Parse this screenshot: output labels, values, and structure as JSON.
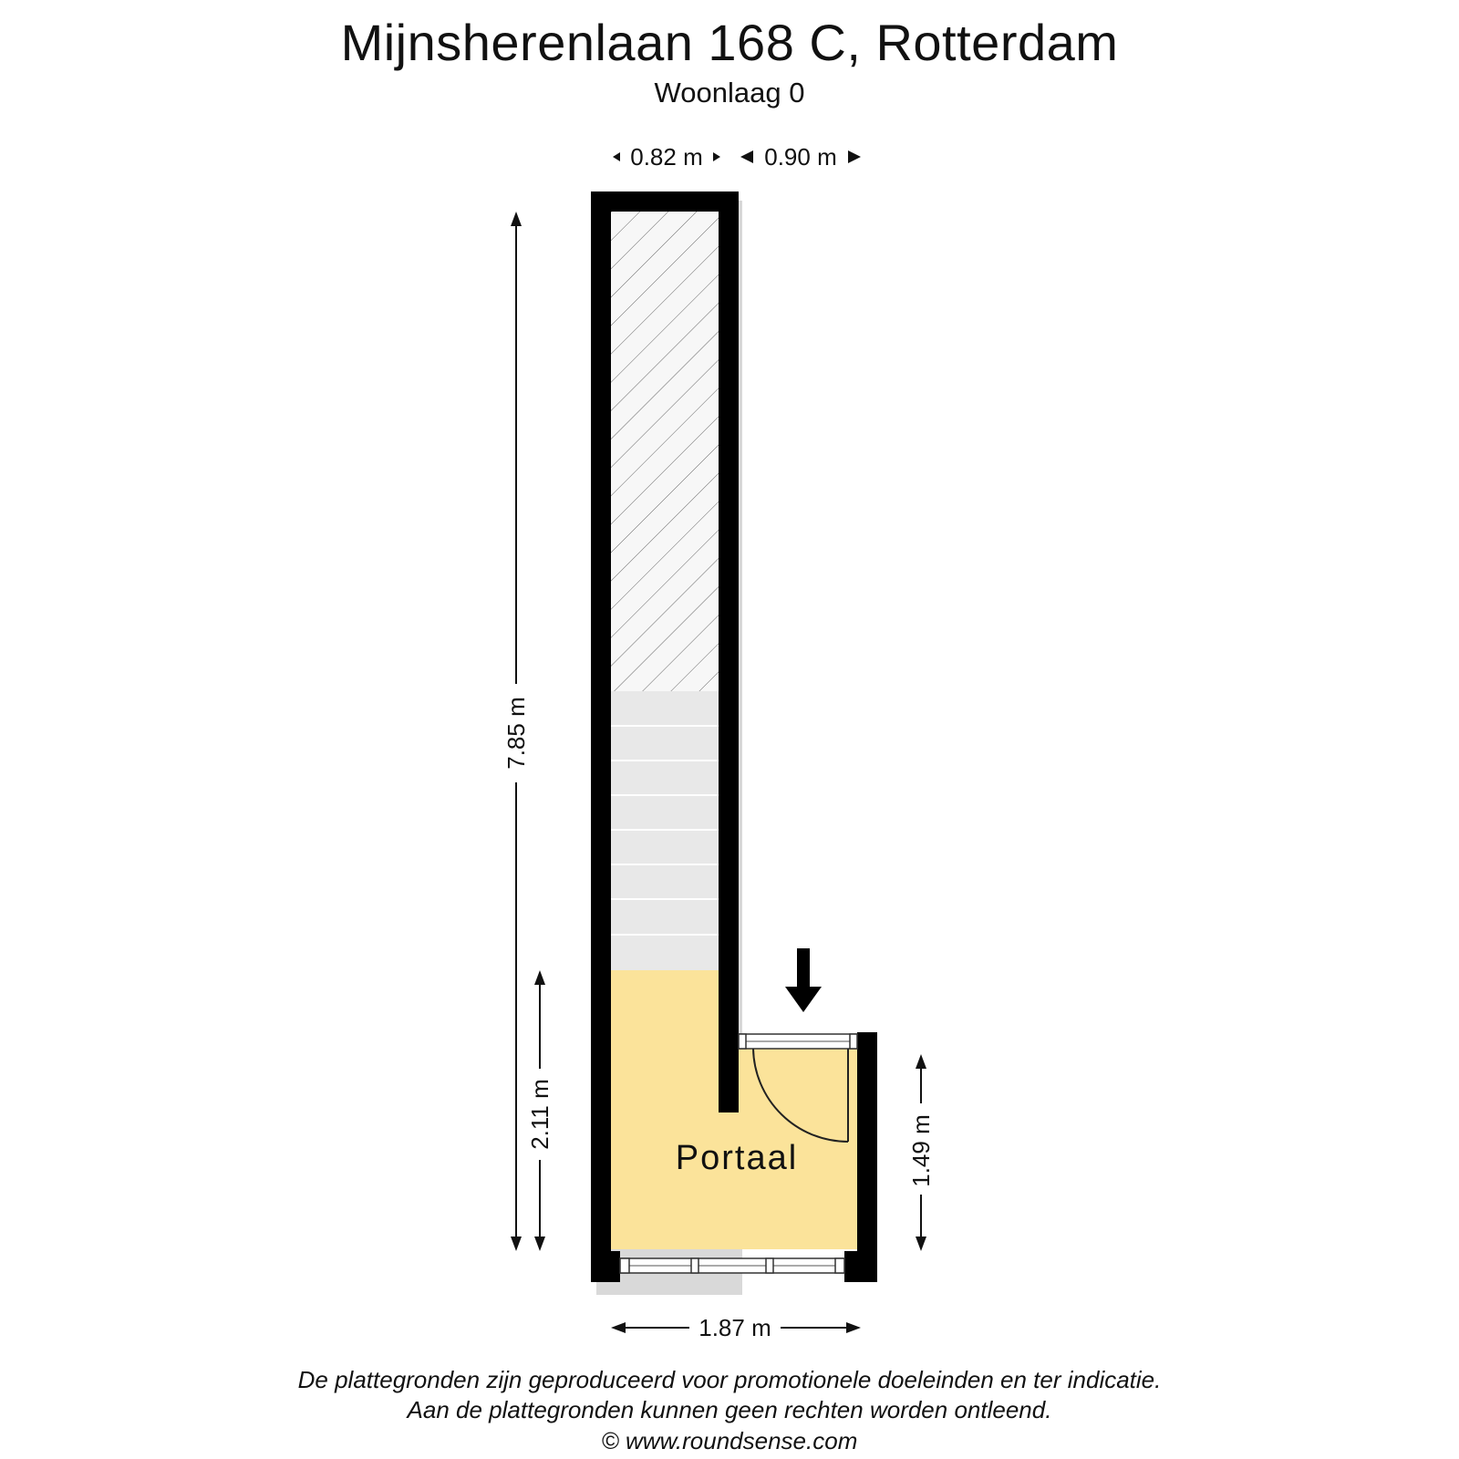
{
  "header": {
    "title": "Mijnsherenlaan 168 C, Rotterdam",
    "subtitle": "Woonlaag 0"
  },
  "plan": {
    "room_label": "Portaal",
    "room_color": "#fbe39a",
    "wall_color": "#000000",
    "stair_color": "#e8e8e8",
    "entry_arrow": "down-arrow-icon",
    "dimensions": {
      "top_left": "0.82 m",
      "top_right": "0.90 m",
      "left_total": "7.85 m",
      "left_portaal": "2.11 m",
      "right_portaal": "1.49 m",
      "bottom_width": "1.87 m"
    }
  },
  "footer": {
    "line1": "De plattegronden zijn geproduceerd voor promotionele doeleinden en ter indicatie.",
    "line2": "Aan de plattegronden kunnen geen rechten worden ontleend.",
    "line3": "© www.roundsense.com"
  }
}
